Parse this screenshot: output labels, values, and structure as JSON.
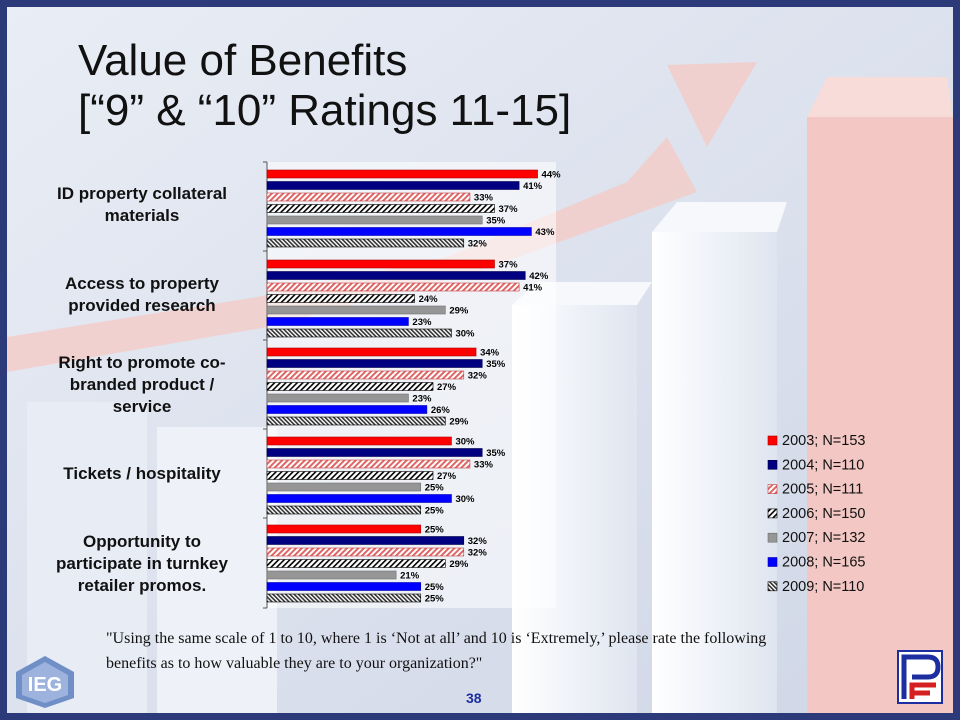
{
  "title": {
    "line1": "Value of Benefits",
    "line2": "[“9” & “10” Ratings 11-15]"
  },
  "footnote": {
    "line1": "\"Using the same scale of 1 to 10, where 1 is ‘Not at all’ and 10 is ‘Extremely,’ please rate the following",
    "line2": "benefits as to how valuable they are to your organization?\""
  },
  "page_number": "38",
  "logos": {
    "left": "IEG",
    "right": "PF"
  },
  "colors": {
    "2003": "#ff0000",
    "2004": "#000080",
    "2005": "#e06666",
    "2006": "#000000",
    "2007": "#969696",
    "2008": "#0000ff",
    "2009": "#333333",
    "frame": "#2d3a7a"
  },
  "chart_data": {
    "type": "bar",
    "orientation": "horizontal",
    "categories": [
      "ID property collateral materials",
      "Access to property provided research",
      "Right to promote co-branded product / service",
      "Tickets / hospitality",
      "Opportunity to participate in turnkey retailer promos."
    ],
    "series": [
      {
        "name": "2003; N=153",
        "values": [
          44,
          37,
          34,
          30,
          25
        ]
      },
      {
        "name": "2004; N=110",
        "values": [
          41,
          42,
          35,
          35,
          32
        ]
      },
      {
        "name": "2005; N=111",
        "values": [
          33,
          41,
          32,
          33,
          32
        ]
      },
      {
        "name": "2006; N=150",
        "values": [
          37,
          24,
          27,
          27,
          29
        ]
      },
      {
        "name": "2007; N=132",
        "values": [
          35,
          29,
          23,
          25,
          21
        ]
      },
      {
        "name": "2008; N=165",
        "values": [
          43,
          23,
          26,
          30,
          25
        ]
      },
      {
        "name": "2009; N=110",
        "values": [
          32,
          30,
          29,
          25,
          25
        ]
      }
    ],
    "data_labels": [
      [
        "44%",
        "37%",
        "34%",
        "30%",
        "25%"
      ],
      [
        "41%",
        "42%",
        "35%",
        "35%",
        "32%"
      ],
      [
        "33%",
        "41%",
        "32%",
        "33%",
        "32%"
      ],
      [
        "37%",
        "24%",
        "27%",
        "27%",
        "29%"
      ],
      [
        "35%",
        "29%",
        "23%",
        "25%",
        "21%"
      ],
      [
        "43%",
        "23%",
        "26%",
        "30%",
        "25%"
      ],
      [
        "32%",
        "30%",
        "29%",
        "25%",
        "25%"
      ]
    ],
    "category_labels": [
      [
        "ID property collateral",
        "materials"
      ],
      [
        "Access to property",
        "provided research"
      ],
      [
        "Right to promote co-",
        "branded product /",
        "service"
      ],
      [
        "Tickets / hospitality"
      ],
      [
        "Opportunity to",
        "participate in turnkey",
        "retailer promos."
      ]
    ],
    "xlim": [
      0,
      47
    ],
    "legend_position": "right",
    "grid": false
  }
}
